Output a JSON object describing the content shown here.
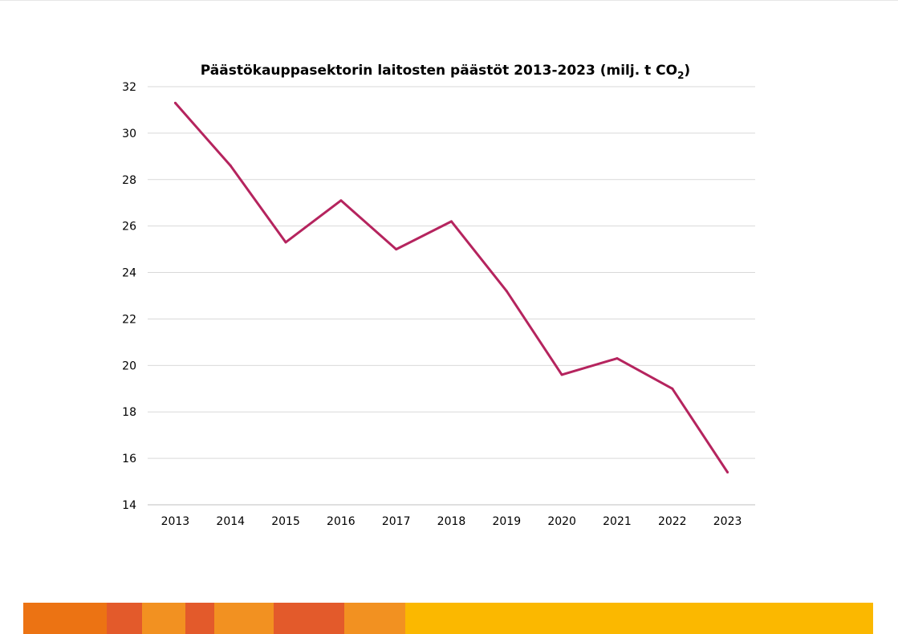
{
  "chart_data": {
    "type": "line",
    "title": "Päästökauppasektorin laitosten päästöt 2013-2023 (milj. t CO",
    "title_subscript": "2",
    "title_suffix": ")",
    "x": [
      "2013",
      "2014",
      "2015",
      "2016",
      "2017",
      "2018",
      "2019",
      "2020",
      "2021",
      "2022",
      "2023"
    ],
    "series": [
      {
        "values": [
          31.3,
          28.6,
          25.3,
          27.1,
          25.0,
          26.2,
          23.2,
          19.6,
          20.3,
          19.0,
          15.4
        ],
        "color": "#b5245e"
      }
    ],
    "ylim": [
      14,
      32
    ],
    "yticks": [
      "14",
      "16",
      "18",
      "20",
      "22",
      "24",
      "26",
      "28",
      "30",
      "32"
    ],
    "grid": true,
    "legend": "none"
  },
  "footer_band": {
    "colors": [
      "#ec7313",
      "#e35a2b",
      "#f29121",
      "#e35a2b",
      "#f29121",
      "#e35a2b",
      "#f29121",
      "#fbb800"
    ]
  }
}
